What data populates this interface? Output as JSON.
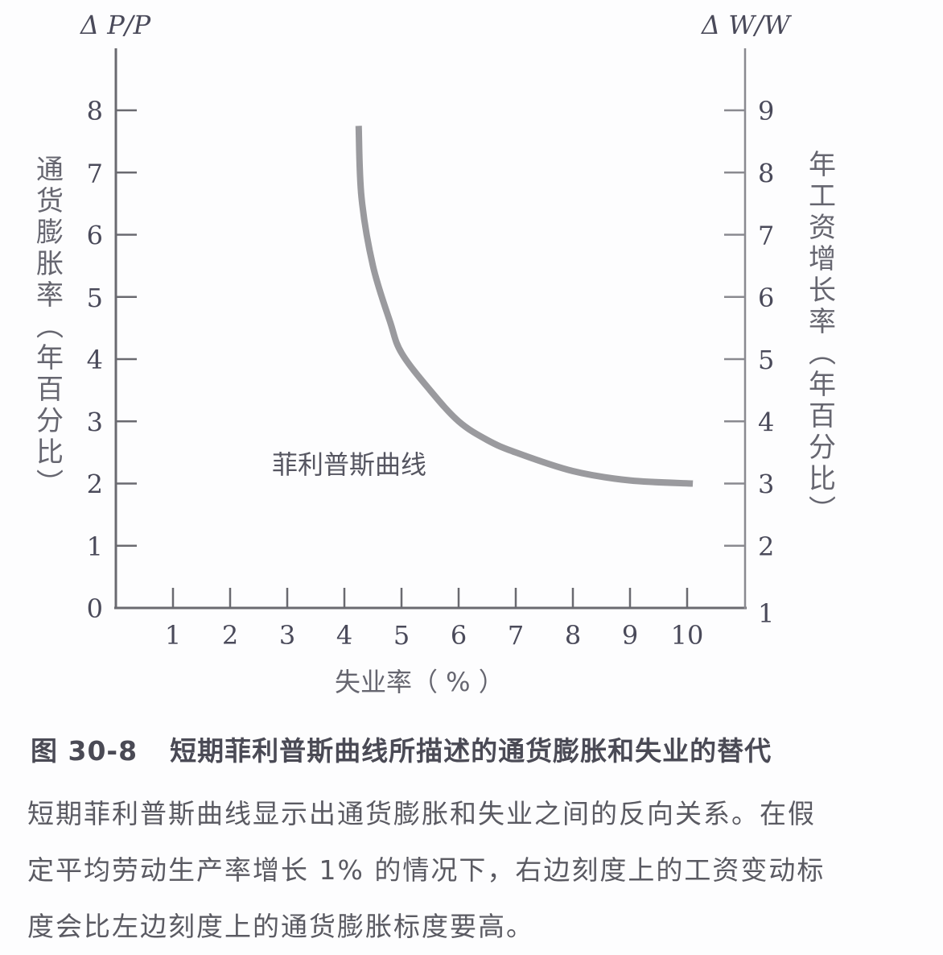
{
  "chart_data": {
    "type": "line",
    "title": "图 30-8 短期菲利普斯曲线所描述的通货膨胀和失业的替代",
    "xlabel": "失业率（%）",
    "ylabel_left": "通货膨胀率（年百分比）",
    "ylabel_right": "年工资增长率（年百分比）",
    "left_axis_symbol": "ΔP/P",
    "right_axis_symbol": "ΔW/W",
    "x_ticks": [
      1,
      2,
      3,
      4,
      5,
      6,
      7,
      8,
      9,
      10
    ],
    "y_left_ticks": [
      0,
      1,
      2,
      3,
      4,
      5,
      6,
      7,
      8
    ],
    "y_right_ticks": [
      1,
      2,
      3,
      4,
      5,
      6,
      7,
      8,
      9
    ],
    "xlim": [
      0,
      11
    ],
    "ylim_left": [
      0,
      9
    ],
    "ylim_right": [
      1,
      10
    ],
    "grid": false,
    "series": [
      {
        "name": "菲利普斯曲线",
        "x": [
          4.25,
          4.3,
          4.5,
          4.8,
          5.0,
          5.5,
          6.0,
          6.5,
          7.0,
          8.0,
          9.0,
          10.1
        ],
        "y": [
          7.75,
          6.6,
          5.5,
          4.6,
          4.1,
          3.5,
          3.0,
          2.7,
          2.5,
          2.2,
          2.05,
          2.0
        ]
      }
    ],
    "annotations": [
      {
        "text": "菲利普斯曲线",
        "x": 4.5,
        "y": 2.3
      }
    ]
  },
  "figure": {
    "caption_number": "图 30-8",
    "caption_title": "短期菲利普斯曲线所描述的通货膨胀和失业的替代",
    "description_lines": [
      "短期菲利普斯曲线显示出通货膨胀和失业之间的反向关系。在假",
      "定平均劳动生产率增长 1% 的情况下，右边刻度上的工资变动标",
      "度会比左边刻度上的通货膨胀标度要高。"
    ]
  },
  "labels": {
    "left_symbol": "Δ P/P",
    "right_symbol": "Δ W/W",
    "left_vertical": [
      "通",
      "货",
      "膨",
      "胀",
      "率",
      "︵",
      "年",
      "百",
      "分",
      "比",
      "︶"
    ],
    "right_vertical": [
      "年",
      "工",
      "资",
      "增",
      "长",
      "率",
      "︵",
      "年",
      "百",
      "分",
      "比",
      "︶"
    ],
    "x_axis_title": "失业率（ % ）",
    "curve_label": "菲利普斯曲线"
  },
  "colors": {
    "axis": "#6a6a70",
    "curve": "#9a9a9e",
    "text": "#4a4a55"
  }
}
